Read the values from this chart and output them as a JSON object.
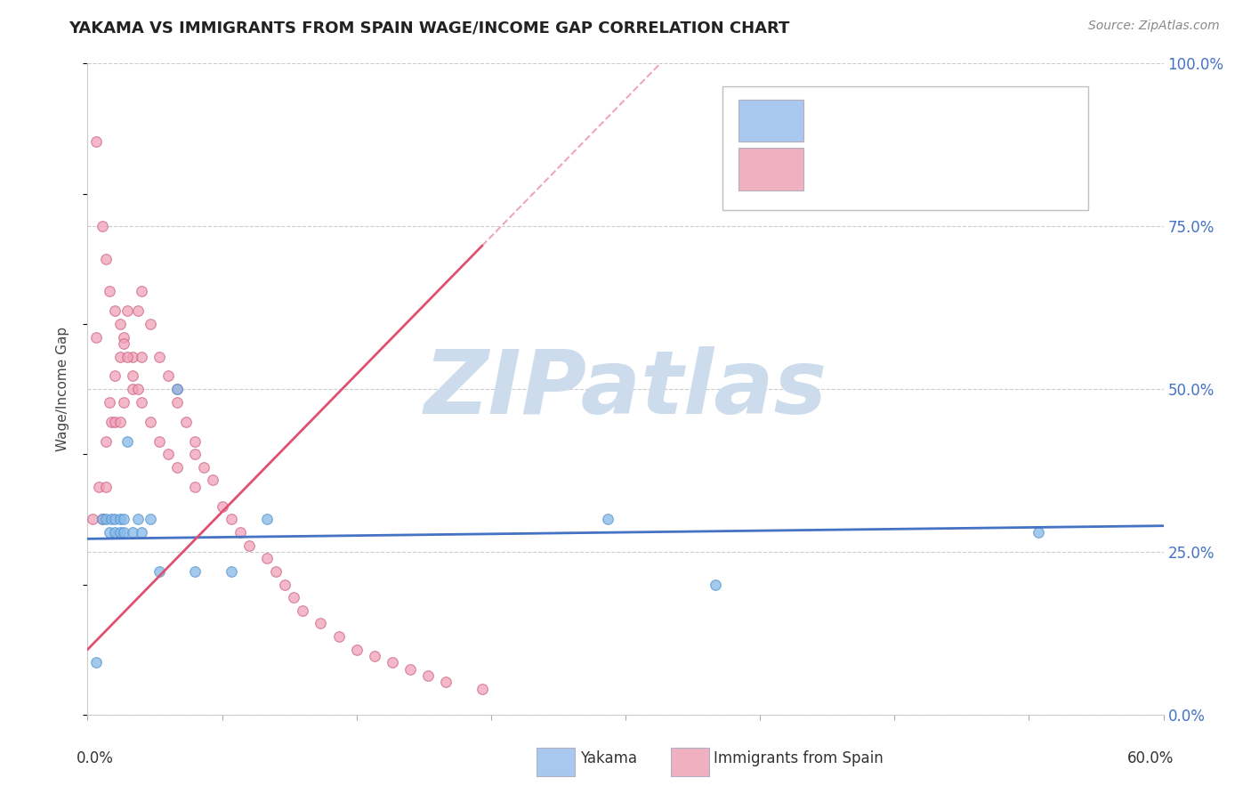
{
  "title": "YAKAMA VS IMMIGRANTS FROM SPAIN WAGE/INCOME GAP CORRELATION CHART",
  "source": "Source: ZipAtlas.com",
  "ylabel": "Wage/Income Gap",
  "xlim": [
    0,
    60
  ],
  "ylim": [
    0,
    100
  ],
  "yticks": [
    0,
    25,
    50,
    75,
    100
  ],
  "ytick_labels": [
    "0.0%",
    "25.0%",
    "50.0%",
    "75.0%",
    "100.0%"
  ],
  "xtick_label_left": "0.0%",
  "xtick_label_right": "60.0%",
  "background_color": "#ffffff",
  "grid_color": "#cccccc",
  "watermark": "ZIPatlas",
  "watermark_color": "#ccdcec",
  "watermark_fontsize": 72,
  "title_fontsize": 13,
  "source_fontsize": 10,
  "yakama_color": "#85b8e8",
  "yakama_edge": "#5090cc",
  "spain_color": "#f0a0b8",
  "spain_edge": "#cc6080",
  "scatter_size": 70,
  "scatter_alpha": 0.75,
  "line_blue": "#4472c4",
  "line_pink": "#e05070",
  "legend_blue_fill": "#a8c8f0",
  "legend_pink_fill": "#f0b0c0",
  "legend_edge": "#b0b0c0",
  "yakama_x": [
    0.5,
    0.8,
    1.0,
    1.2,
    1.3,
    1.5,
    1.5,
    1.8,
    1.8,
    2.0,
    2.0,
    2.2,
    2.5,
    2.8,
    3.0,
    3.5,
    4.0,
    5.0,
    6.0,
    8.0,
    29.0,
    35.0,
    53.0,
    10.0
  ],
  "yakama_y": [
    8,
    30,
    30,
    28,
    30,
    30,
    28,
    30,
    28,
    30,
    28,
    42,
    28,
    30,
    28,
    30,
    22,
    50,
    22,
    22,
    30,
    20,
    28,
    30
  ],
  "spain_x": [
    0.3,
    0.5,
    0.6,
    0.8,
    1.0,
    1.0,
    1.2,
    1.3,
    1.5,
    1.5,
    1.8,
    1.8,
    2.0,
    2.0,
    2.2,
    2.5,
    2.5,
    2.8,
    3.0,
    3.0,
    3.5,
    4.0,
    4.5,
    5.0,
    5.0,
    5.5,
    6.0,
    6.0,
    6.5,
    7.0,
    7.5,
    8.0,
    8.5,
    9.0,
    10.0,
    10.5,
    11.0,
    11.5,
    12.0,
    13.0,
    14.0,
    15.0,
    16.0,
    17.0,
    18.0,
    19.0,
    20.0,
    22.0,
    0.5,
    0.8,
    1.0,
    1.2,
    1.5,
    1.8,
    2.0,
    2.2,
    2.5,
    2.8,
    3.0,
    3.5,
    4.0,
    4.5,
    5.0,
    6.0
  ],
  "spain_y": [
    30,
    58,
    35,
    30,
    42,
    35,
    48,
    45,
    52,
    45,
    55,
    45,
    58,
    48,
    62,
    55,
    50,
    62,
    65,
    55,
    60,
    55,
    52,
    50,
    48,
    45,
    42,
    40,
    38,
    36,
    32,
    30,
    28,
    26,
    24,
    22,
    20,
    18,
    16,
    14,
    12,
    10,
    9,
    8,
    7,
    6,
    5,
    4,
    88,
    75,
    70,
    65,
    62,
    60,
    57,
    55,
    52,
    50,
    48,
    45,
    42,
    40,
    38,
    35
  ]
}
